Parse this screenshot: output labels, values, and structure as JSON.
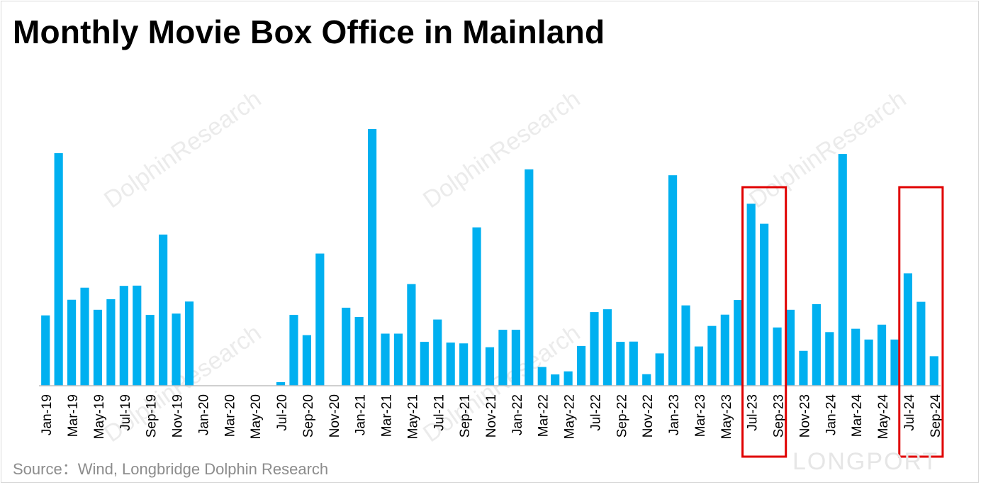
{
  "title": "Monthly Movie Box Office in Mainland",
  "source": "Source：Wind, Longbridge Dolphin Research",
  "watermark_text": "DolphinResearch",
  "brand_logo_text": "LONGPORT",
  "chart_data": {
    "type": "bar",
    "title": "Monthly Movie Box Office in Mainland",
    "xlabel": "",
    "ylabel": "",
    "ylim": [
      0,
      100
    ],
    "grid": false,
    "legend": "none",
    "bar_color": "#00b0f0",
    "highlight_color": "#e00000",
    "categories": [
      "Jan-19",
      "Feb-19",
      "Mar-19",
      "Apr-19",
      "May-19",
      "Jun-19",
      "Jul-19",
      "Aug-19",
      "Sep-19",
      "Oct-19",
      "Nov-19",
      "Dec-19",
      "Jan-20",
      "Feb-20",
      "Mar-20",
      "Apr-20",
      "May-20",
      "Jun-20",
      "Jul-20",
      "Aug-20",
      "Sep-20",
      "Oct-20",
      "Nov-20",
      "Dec-20",
      "Jan-21",
      "Feb-21",
      "Mar-21",
      "Apr-21",
      "May-21",
      "Jun-21",
      "Jul-21",
      "Aug-21",
      "Sep-21",
      "Oct-21",
      "Nov-21",
      "Dec-21",
      "Jan-22",
      "Feb-22",
      "Mar-22",
      "Apr-22",
      "May-22",
      "Jun-22",
      "Jul-22",
      "Aug-22",
      "Sep-22",
      "Oct-22",
      "Nov-22",
      "Dec-22",
      "Jan-23",
      "Feb-23",
      "Mar-23",
      "Apr-23",
      "May-23",
      "Jun-23",
      "Jul-23",
      "Aug-23",
      "Sep-23",
      "Oct-23",
      "Nov-23",
      "Dec-23",
      "Jan-24",
      "Feb-24",
      "Mar-24",
      "Apr-24",
      "May-24",
      "Jun-24",
      "Jul-24",
      "Aug-24",
      "Sep-24"
    ],
    "tick_labels": [
      "Jan-19",
      "Mar-19",
      "May-19",
      "Jul-19",
      "Sep-19",
      "Nov-19",
      "Jan-20",
      "Mar-20",
      "May-20",
      "Jul-20",
      "Sep-20",
      "Nov-20",
      "Jan-21",
      "Mar-21",
      "May-21",
      "Jul-21",
      "Sep-21",
      "Nov-21",
      "Jan-22",
      "Mar-22",
      "May-22",
      "Jul-22",
      "Sep-22",
      "Nov-22",
      "Jan-23",
      "Mar-23",
      "May-23",
      "Jul-23",
      "Sep-23",
      "Nov-23",
      "Jan-24",
      "Mar-24",
      "May-24",
      "Jul-24",
      "Sep-24"
    ],
    "values": [
      27.4,
      90.6,
      33.5,
      38.2,
      29.6,
      33.7,
      38.9,
      39.0,
      27.6,
      58.9,
      28.1,
      32.8,
      0,
      0,
      0,
      0,
      0,
      0,
      1.4,
      27.6,
      19.7,
      51.5,
      0,
      30.4,
      26.8,
      100,
      20.3,
      20.3,
      39.6,
      17.1,
      25.8,
      16.8,
      16.5,
      61.7,
      15.0,
      21.8,
      21.8,
      84.3,
      7.3,
      4.4,
      5.6,
      15.5,
      28.7,
      29.8,
      17.1,
      17.2,
      4.5,
      12.6,
      82.0,
      31.3,
      15.3,
      23.3,
      27.7,
      33.4,
      70.9,
      63.1,
      22.7,
      29.6,
      13.6,
      31.8,
      20.9,
      90.3,
      22.2,
      18.0,
      23.8,
      18.0,
      43.8,
      32.7,
      11.5
    ],
    "highlights": [
      {
        "from": "Jul-23",
        "to": "Sep-23"
      },
      {
        "from": "Jul-24",
        "to": "Sep-24"
      }
    ]
  }
}
